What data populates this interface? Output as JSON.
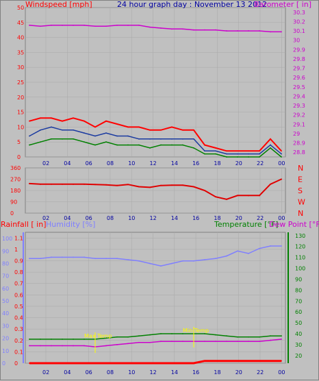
{
  "top": {
    "left_title": "Windspeed [mph]",
    "center_title": "24 hour graph day : November 13 2012",
    "right_title": "Barometer [ in]",
    "left_ticks": [
      "0",
      "5",
      "10",
      "15",
      "20",
      "25",
      "30",
      "35",
      "40",
      "45",
      "50"
    ],
    "right_ticks": [
      "28.8",
      "28.9",
      "29",
      "29.1",
      "29.2",
      "29.3",
      "29.4",
      "29.5",
      "29.6",
      "29.7",
      "29.8",
      "29.9",
      "30",
      "30.1",
      "30.2",
      "30.3"
    ],
    "x_ticks": [
      "02",
      "04",
      "06",
      "08",
      "10",
      "12",
      "14",
      "16",
      "18",
      "20",
      "22",
      "00"
    ]
  },
  "middle": {
    "left_ticks": [
      "0",
      "90",
      "180",
      "270",
      "360"
    ],
    "directions": [
      "N",
      "W",
      "S",
      "E",
      "N"
    ],
    "x_ticks": [
      "02",
      "04",
      "06",
      "08",
      "10",
      "12",
      "14",
      "16",
      "18",
      "20",
      "22",
      "00"
    ]
  },
  "bottom": {
    "label_rain": "Rainfall [ in]",
    "label_humidity": "Humidity [%]",
    "label_temperature": "Temperature [°F]",
    "label_dewpoint": "Dew Point [°F]",
    "rain_ticks": [
      "0",
      "0.1",
      "0.2",
      "0.3",
      "0.4",
      "0.5",
      "0.6",
      "0.7",
      "0.8",
      "0.9",
      "1",
      "1.1"
    ],
    "humidity_ticks": [
      "0",
      "10",
      "20",
      "30",
      "40",
      "50",
      "60",
      "70",
      "80",
      "90",
      "100"
    ],
    "temp_ticks": [
      "20",
      "30",
      "40",
      "50",
      "60",
      "70",
      "80",
      "90",
      "100",
      "110",
      "120",
      "130"
    ],
    "x_ticks": [
      "02",
      "04",
      "06",
      "08",
      "10",
      "12",
      "14",
      "16",
      "18",
      "20",
      "22",
      "00"
    ],
    "yellow_label_1": "Max Temp",
    "yellow_label_2": "Min Temp"
  },
  "colors": {
    "wind": "#ff0000",
    "gust_avg": "#1a3aa0",
    "avg": "#008000",
    "barometer": "#cc00cc",
    "direction": "#e00000",
    "humidity": "#7f7fff",
    "temperature": "#008000",
    "dewpoint": "#cc00cc",
    "rain": "#ff0000",
    "axis_blue": "#0000a0"
  },
  "chart_data": [
    {
      "type": "line",
      "title": "24 hour graph day : November 13 2012",
      "ylabel": "Windspeed [mph]",
      "y2label": "Barometer [ in]",
      "ylim": [
        0,
        50
      ],
      "y2lim": [
        28.75,
        30.35
      ],
      "x": [
        "01",
        "02",
        "03",
        "04",
        "05",
        "06",
        "07",
        "08",
        "09",
        "10",
        "11",
        "12",
        "13",
        "14",
        "15",
        "16",
        "17",
        "18",
        "19",
        "20",
        "21",
        "22",
        "23",
        "00"
      ],
      "series": [
        {
          "values": [
            12,
            13,
            13,
            12,
            13,
            12,
            10,
            12,
            11,
            10,
            10,
            9,
            9,
            10,
            9,
            9,
            4,
            3,
            2,
            2,
            2,
            2,
            6,
            2
          ]
        },
        {
          "values": [
            7,
            9,
            10,
            9,
            9,
            8,
            7,
            8,
            7,
            7,
            6,
            6,
            6,
            6,
            6,
            6,
            2,
            2,
            1,
            1,
            1,
            1,
            4,
            1
          ]
        },
        {
          "values": [
            4,
            5,
            6,
            6,
            6,
            5,
            4,
            5,
            4,
            4,
            4,
            3,
            4,
            4,
            4,
            3,
            1,
            1,
            0,
            0,
            0,
            0,
            3,
            0
          ]
        },
        {
          "values": [
            30.16,
            30.15,
            30.16,
            30.16,
            30.16,
            30.16,
            30.15,
            30.15,
            30.16,
            30.16,
            30.16,
            30.14,
            30.13,
            30.12,
            30.12,
            30.11,
            30.11,
            30.11,
            30.1,
            30.1,
            30.1,
            30.1,
            30.09,
            30.09
          ]
        }
      ]
    },
    {
      "type": "line",
      "ylim": [
        0,
        360
      ],
      "x": [
        "01",
        "02",
        "03",
        "04",
        "05",
        "06",
        "07",
        "08",
        "09",
        "10",
        "11",
        "12",
        "13",
        "14",
        "15",
        "16",
        "17",
        "18",
        "19",
        "20",
        "21",
        "22",
        "23",
        "00"
      ],
      "series": [
        {
          "values": [
            235,
            230,
            230,
            230,
            230,
            230,
            228,
            225,
            220,
            228,
            210,
            205,
            220,
            222,
            222,
            210,
            180,
            130,
            110,
            140,
            140,
            140,
            230,
            270
          ]
        }
      ]
    },
    {
      "type": "line",
      "y1label": "Rainfall [ in]",
      "y2label": "Humidity [%]",
      "y3label": "Temperature [°F]",
      "y4label": "Dew Point [°F]",
      "ylim": [
        0,
        1.15
      ],
      "humidity_lim": [
        0,
        105
      ],
      "temp_lim": [
        13,
        133
      ],
      "x": [
        "01",
        "02",
        "03",
        "04",
        "05",
        "06",
        "07",
        "08",
        "09",
        "10",
        "11",
        "12",
        "13",
        "14",
        "15",
        "16",
        "17",
        "18",
        "19",
        "20",
        "21",
        "22",
        "23",
        "00"
      ],
      "series": [
        {
          "values": [
            0,
            0,
            0,
            0,
            0,
            0,
            0,
            0,
            0,
            0,
            0,
            0,
            0,
            0,
            0,
            0,
            0.02,
            0.02,
            0.02,
            0.02,
            0.02,
            0.02,
            0.02,
            0.02
          ]
        },
        {
          "values": [
            84,
            84,
            85,
            85,
            85,
            85,
            84,
            84,
            84,
            83,
            82,
            80,
            78,
            80,
            82,
            82,
            83,
            84,
            86,
            90,
            88,
            92,
            94,
            94
          ]
        },
        {
          "values": [
            35,
            35,
            35,
            35,
            35,
            35,
            35,
            36,
            37,
            37,
            38,
            39,
            40,
            40,
            40,
            40,
            40,
            39,
            38,
            37,
            37,
            37,
            38,
            38
          ]
        },
        {
          "values": [
            29,
            29,
            29,
            29,
            29,
            29,
            28,
            29,
            30,
            31,
            32,
            32,
            33,
            33,
            33,
            33,
            33,
            33,
            33,
            33,
            33,
            33,
            34,
            35
          ]
        }
      ]
    }
  ]
}
